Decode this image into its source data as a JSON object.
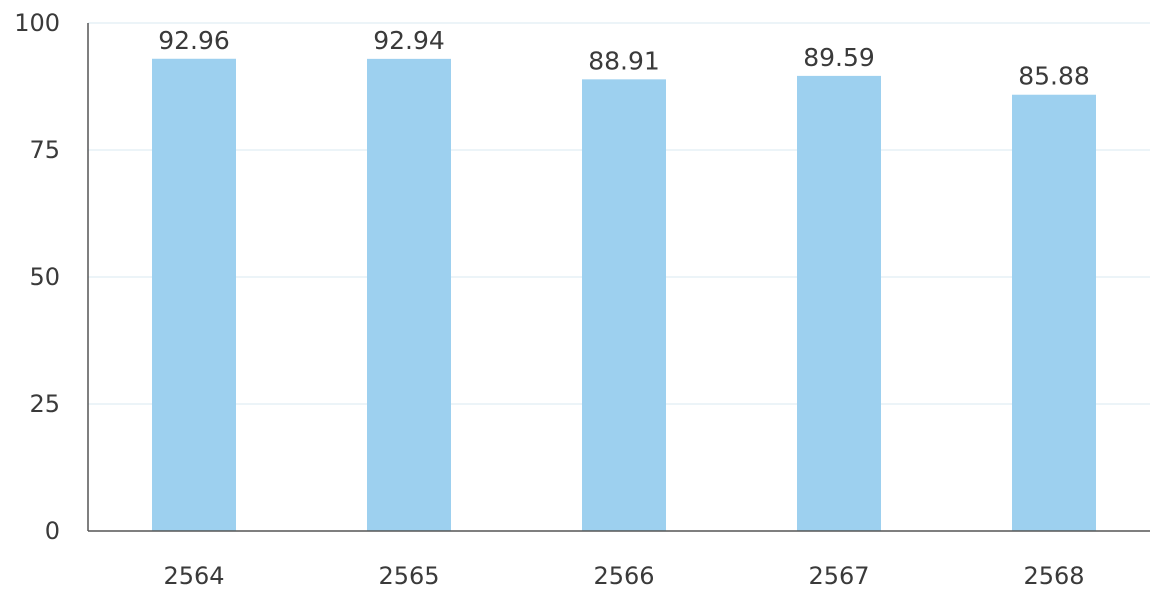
{
  "chart_data": {
    "type": "bar",
    "categories": [
      "2564",
      "2565",
      "2566",
      "2567",
      "2568"
    ],
    "values": [
      92.96,
      92.94,
      88.91,
      89.59,
      85.88
    ],
    "value_labels": [
      "92.96",
      "92.94",
      "88.91",
      "89.59",
      "85.88"
    ],
    "yticks": [
      "0",
      "25",
      "50",
      "75",
      "100"
    ],
    "title": "",
    "xlabel": "",
    "ylabel": "",
    "ylim": [
      0,
      100
    ],
    "grid": true,
    "legend": "none",
    "colors": {
      "bar": "#9dd0ef",
      "axis": "#555555",
      "grid": "#e6f1f6",
      "text": "#3a3a3a"
    }
  }
}
